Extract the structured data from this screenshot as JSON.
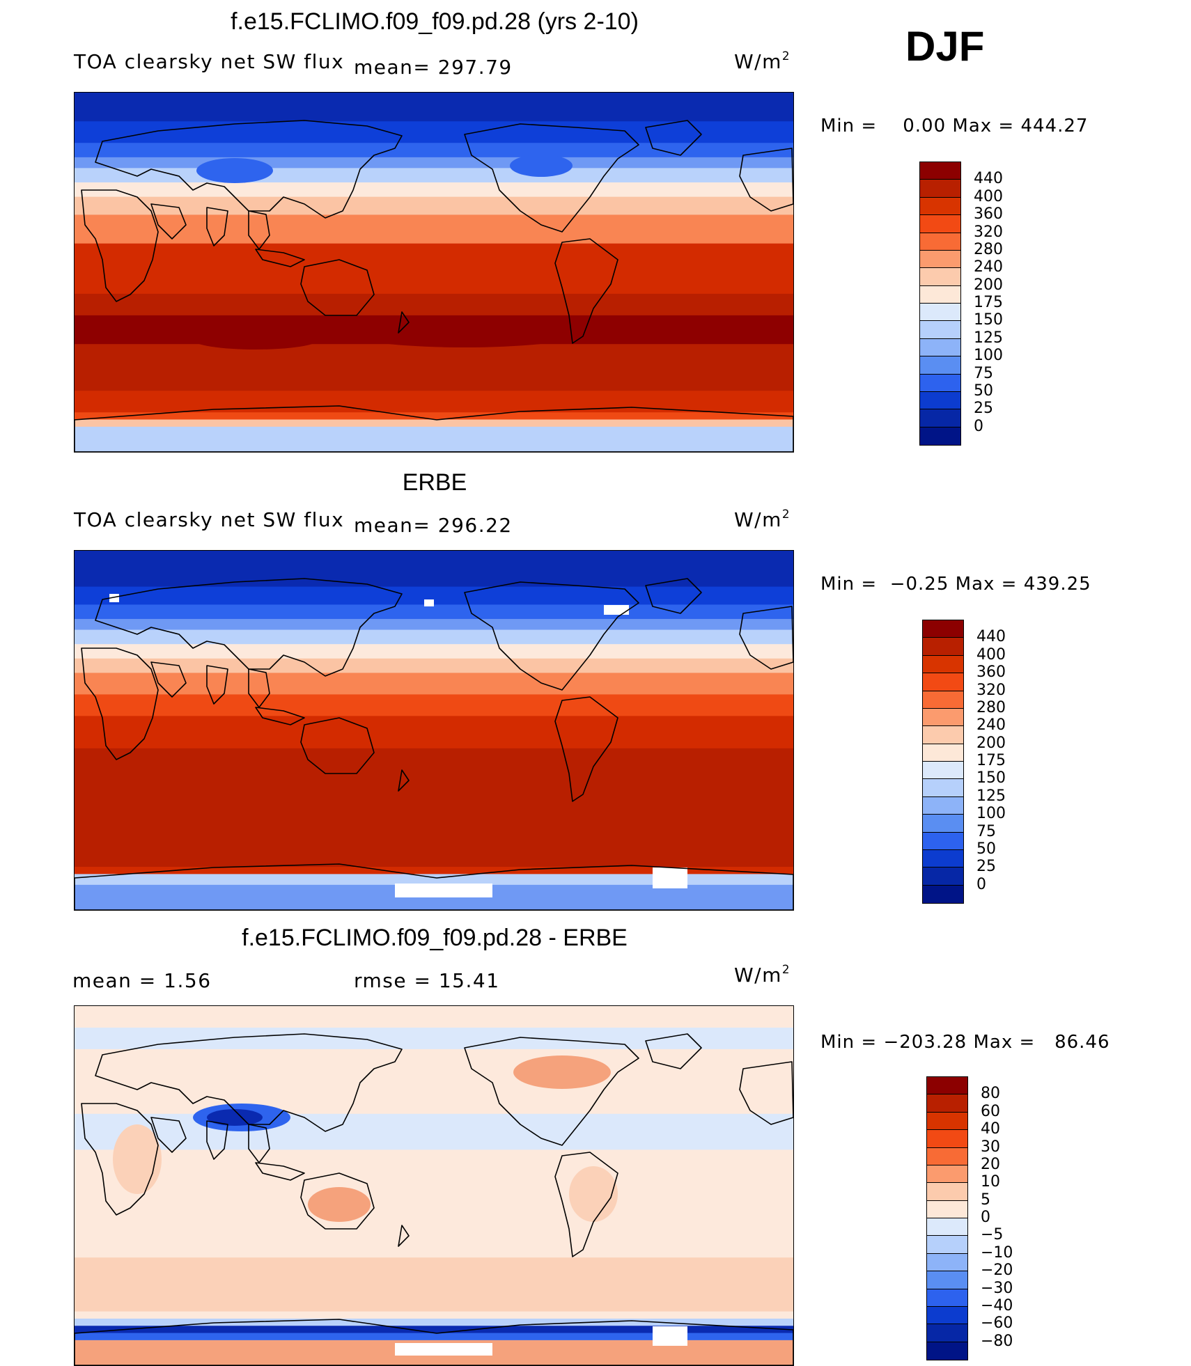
{
  "season": "DJF",
  "panels": [
    {
      "id": "model",
      "title": "f.e15.FCLIMO.f09_f09.pd.28 (yrs 2-10)",
      "left_label": "TOA clearsky net SW flux",
      "mid_label": "mean= 297.79",
      "unit_base": "W/m",
      "unit_exp": "2",
      "minmax": "Min =    0.00 Max = 444.27",
      "colorbar_labels": [
        "440",
        "400",
        "360",
        "320",
        "280",
        "240",
        "200",
        "175",
        "150",
        "125",
        "100",
        "75",
        "50",
        "25",
        "0"
      ],
      "colorbar_colors": [
        "#8c0000",
        "#b82000",
        "#d83400",
        "#f24a14",
        "#f86b35",
        "#fb9b6e",
        "#fccbad",
        "#fde8d8",
        "#dce9fb",
        "#b6d0fb",
        "#8db3f8",
        "#5a8ef2",
        "#2d62ee",
        "#0c3ccf",
        "#0627a6",
        "#001487"
      ]
    },
    {
      "id": "obs",
      "title": "ERBE",
      "left_label": "TOA clearsky net SW flux",
      "mid_label": "mean= 296.22",
      "unit_base": "W/m",
      "unit_exp": "2",
      "minmax": "Min =  −0.25 Max = 439.25",
      "colorbar_labels": [
        "440",
        "400",
        "360",
        "320",
        "280",
        "240",
        "200",
        "175",
        "150",
        "125",
        "100",
        "75",
        "50",
        "25",
        "0"
      ],
      "colorbar_colors": [
        "#8c0000",
        "#b82000",
        "#d83400",
        "#f24a14",
        "#f86b35",
        "#fb9b6e",
        "#fccbad",
        "#fde8d8",
        "#dce9fb",
        "#b6d0fb",
        "#8db3f8",
        "#5a8ef2",
        "#2d62ee",
        "#0c3ccf",
        "#0627a6",
        "#001487"
      ]
    },
    {
      "id": "diff",
      "title": "f.e15.FCLIMO.f09_f09.pd.28 - ERBE",
      "left_label": "mean =     1.56",
      "mid_label": "rmse =    15.41",
      "unit_base": "W/m",
      "unit_exp": "2",
      "minmax": "Min = −203.28 Max =   86.46",
      "colorbar_labels": [
        "80",
        "60",
        "40",
        "30",
        "20",
        "10",
        "5",
        "0",
        "−5",
        "−10",
        "−20",
        "−30",
        "−40",
        "−60",
        "−80"
      ],
      "colorbar_colors": [
        "#8c0000",
        "#b82000",
        "#d83400",
        "#f24a14",
        "#f86b35",
        "#fb9b6e",
        "#fccbad",
        "#fde8d8",
        "#dce9fb",
        "#b6d0fb",
        "#8db3f8",
        "#5a8ef2",
        "#2d62ee",
        "#0c3ccf",
        "#0627a6",
        "#001487"
      ]
    }
  ],
  "map_palettes": {
    "flux": [
      "#0a2ab0",
      "#0e3fd8",
      "#2e64ee",
      "#6f99f4",
      "#b9d2fb",
      "#fde9dc",
      "#fbc4a4",
      "#f98553",
      "#ef4a14",
      "#d32b00",
      "#b81f00",
      "#8e0000"
    ],
    "diff": [
      "#fde9dc",
      "#fbd1b8",
      "#f5a27c",
      "#dbe8fb",
      "#b9d2fb",
      "#2e64ee",
      "#0a2ab0"
    ]
  },
  "land_color": "#000000"
}
